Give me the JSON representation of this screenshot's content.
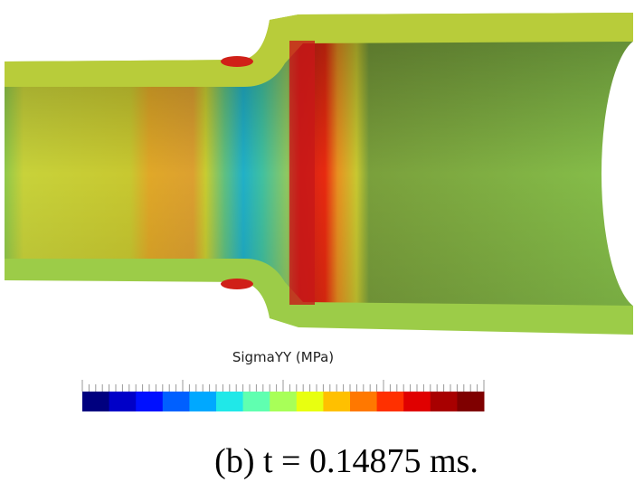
{
  "figure": {
    "colorbar_title": "SigmaYY (MPa)",
    "caption": "(b) t = 0.14875 ms."
  }
}
